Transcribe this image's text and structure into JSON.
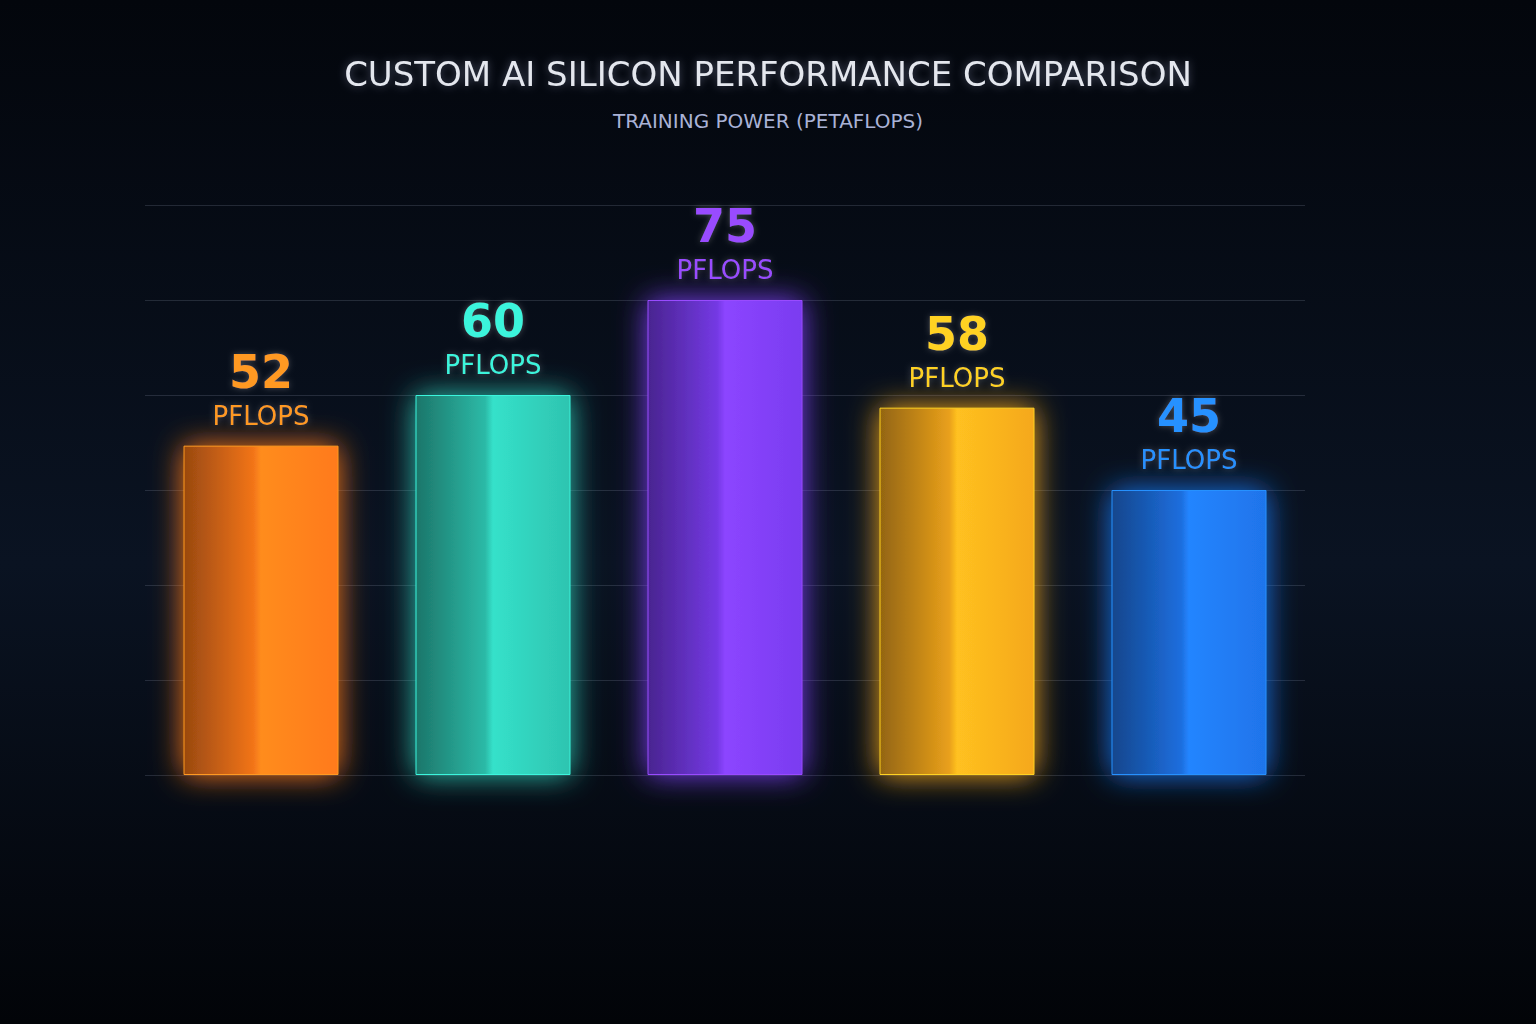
{
  "chart_data": {
    "type": "bar",
    "title": "CUSTOM AI SILICON PERFORMANCE COMPARISON",
    "subtitle": "TRAINING POWER (PETAFLOPS)",
    "categories": [
      null,
      null,
      null,
      null,
      null
    ],
    "values": [
      52,
      60,
      75,
      58,
      45
    ],
    "value_labels": [
      "52 PFLOPS",
      "60 PFLOPS",
      "75 PFLOPS",
      "58 PFLOPS",
      "45 PFLOPS"
    ],
    "colors": [
      "#ff7a1a",
      "#2ec4b0",
      "#7a3cf0",
      "#f5a81c",
      "#1f74ea"
    ],
    "ylim": [
      0,
      90
    ],
    "yticks": [
      0,
      15,
      30,
      45,
      60,
      75,
      90
    ],
    "grid": true,
    "data_labels": true,
    "tick_labels": false
  }
}
